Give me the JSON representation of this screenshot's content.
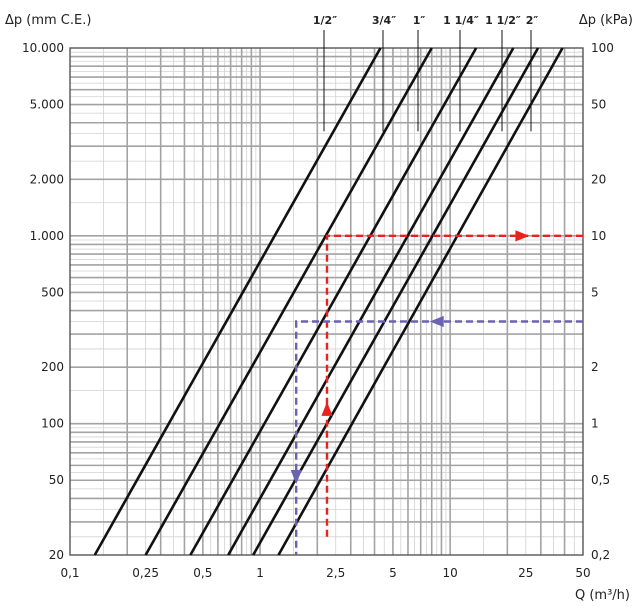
{
  "chart_data": {
    "type": "line",
    "x_axis": {
      "label": "Q (m³/h)",
      "scale": "log",
      "range": [
        0.1,
        50
      ],
      "ticks": [
        {
          "value": 0.1,
          "label": "0,1"
        },
        {
          "value": 0.25,
          "label": "0,25"
        },
        {
          "value": 0.5,
          "label": "0,5"
        },
        {
          "value": 1,
          "label": "1"
        },
        {
          "value": 2.5,
          "label": "2,5"
        },
        {
          "value": 5,
          "label": "5"
        },
        {
          "value": 10,
          "label": "10"
        },
        {
          "value": 25,
          "label": "25"
        },
        {
          "value": 50,
          "label": "50"
        }
      ]
    },
    "y_axis_left": {
      "label": "Δp (mm C.E.)",
      "scale": "log",
      "range": [
        20,
        10000
      ],
      "ticks": [
        {
          "value": 20,
          "label": "20"
        },
        {
          "value": 50,
          "label": "50"
        },
        {
          "value": 100,
          "label": "100"
        },
        {
          "value": 200,
          "label": "200"
        },
        {
          "value": 500,
          "label": "500"
        },
        {
          "value": 1000,
          "label": "1.000"
        },
        {
          "value": 2000,
          "label": "2.000"
        },
        {
          "value": 5000,
          "label": "5.000"
        },
        {
          "value": 10000,
          "label": "10.000"
        }
      ]
    },
    "y_axis_right": {
      "label": "Δp (kPa)",
      "scale": "log",
      "range": [
        0.2,
        100
      ],
      "ticks": [
        {
          "value": 0.2,
          "label": "0,2"
        },
        {
          "value": 0.5,
          "label": "0,5"
        },
        {
          "value": 1,
          "label": "1"
        },
        {
          "value": 2,
          "label": "2"
        },
        {
          "value": 5,
          "label": "5"
        },
        {
          "value": 10,
          "label": "10"
        },
        {
          "value": 20,
          "label": "20"
        },
        {
          "value": 50,
          "label": "50"
        },
        {
          "value": 100,
          "label": "100"
        }
      ]
    },
    "grid": true,
    "series": [
      {
        "name": "1/2″",
        "points": [
          [
            0.135,
            20
          ],
          [
            4.3,
            10000
          ]
        ]
      },
      {
        "name": "3/4″",
        "points": [
          [
            0.25,
            20
          ],
          [
            8.0,
            10000
          ]
        ]
      },
      {
        "name": "1″",
        "points": [
          [
            0.43,
            20
          ],
          [
            13.7,
            10000
          ]
        ]
      },
      {
        "name": "1 1/4″",
        "points": [
          [
            0.68,
            20
          ],
          [
            21.5,
            10000
          ]
        ]
      },
      {
        "name": "1 1/2″",
        "points": [
          [
            0.92,
            20
          ],
          [
            29.0,
            10000
          ]
        ]
      },
      {
        "name": "2″",
        "points": [
          [
            1.25,
            20
          ],
          [
            39.0,
            10000
          ]
        ]
      }
    ],
    "annotations": [
      {
        "color": "#e8231e",
        "points": [
          [
            2.25,
            25
          ],
          [
            2.25,
            1000
          ],
          [
            50,
            1000
          ]
        ],
        "arrows": [
          [
            2.25,
            120
          ],
          [
            24,
            1000
          ]
        ]
      },
      {
        "color": "#6a63b3",
        "points": [
          [
            50,
            350
          ],
          [
            1.55,
            350
          ],
          [
            1.55,
            20
          ]
        ],
        "arrows": [
          [
            8.5,
            350
          ],
          [
            1.55,
            52
          ]
        ]
      }
    ]
  }
}
